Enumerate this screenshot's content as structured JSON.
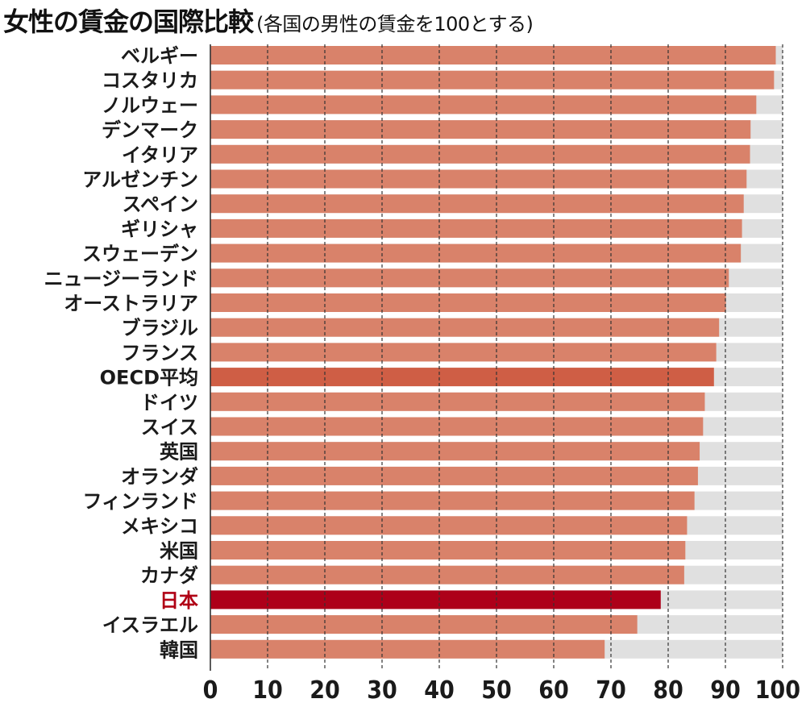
{
  "title": {
    "main": "女性の賃金の国際比較",
    "sub": "(各国の男性の賃金を100とする)"
  },
  "colors": {
    "bar": "#d9826a",
    "oecd": "#cf5e45",
    "japan": "#ad0019",
    "track": "#e0e0e0",
    "grid": "#333333",
    "highlight_text": "#b00015"
  },
  "chart_data": {
    "type": "bar",
    "orientation": "horizontal",
    "categories": [
      "ベルギー",
      "コスタリカ",
      "ノルウェー",
      "デンマーク",
      "イタリア",
      "アルゼンチン",
      "スペイン",
      "ギリシャ",
      "スウェーデン",
      "ニュージーランド",
      "オーストラリア",
      "ブラジル",
      "フランス",
      "OECD平均",
      "ドイツ",
      "スイス",
      "英国",
      "オランダ",
      "フィンランド",
      "メキシコ",
      "米国",
      "カナダ",
      "日本",
      "イスラエル",
      "韓国"
    ],
    "values": [
      98.8,
      98.5,
      95.4,
      94.4,
      94.3,
      93.7,
      93.2,
      92.9,
      92.7,
      90.6,
      90.1,
      88.9,
      88.4,
      88.0,
      86.4,
      86.1,
      85.5,
      85.2,
      84.6,
      83.3,
      83.0,
      82.8,
      78.7,
      74.6,
      68.9
    ],
    "highlight": {
      "OECD平均": "oecd",
      "日本": "japan"
    },
    "xlim": [
      0,
      100
    ],
    "xticks": [
      "0",
      "10",
      "20",
      "30",
      "40",
      "50",
      "60",
      "70",
      "80",
      "90",
      "100"
    ],
    "grid": "vertical dashed"
  }
}
